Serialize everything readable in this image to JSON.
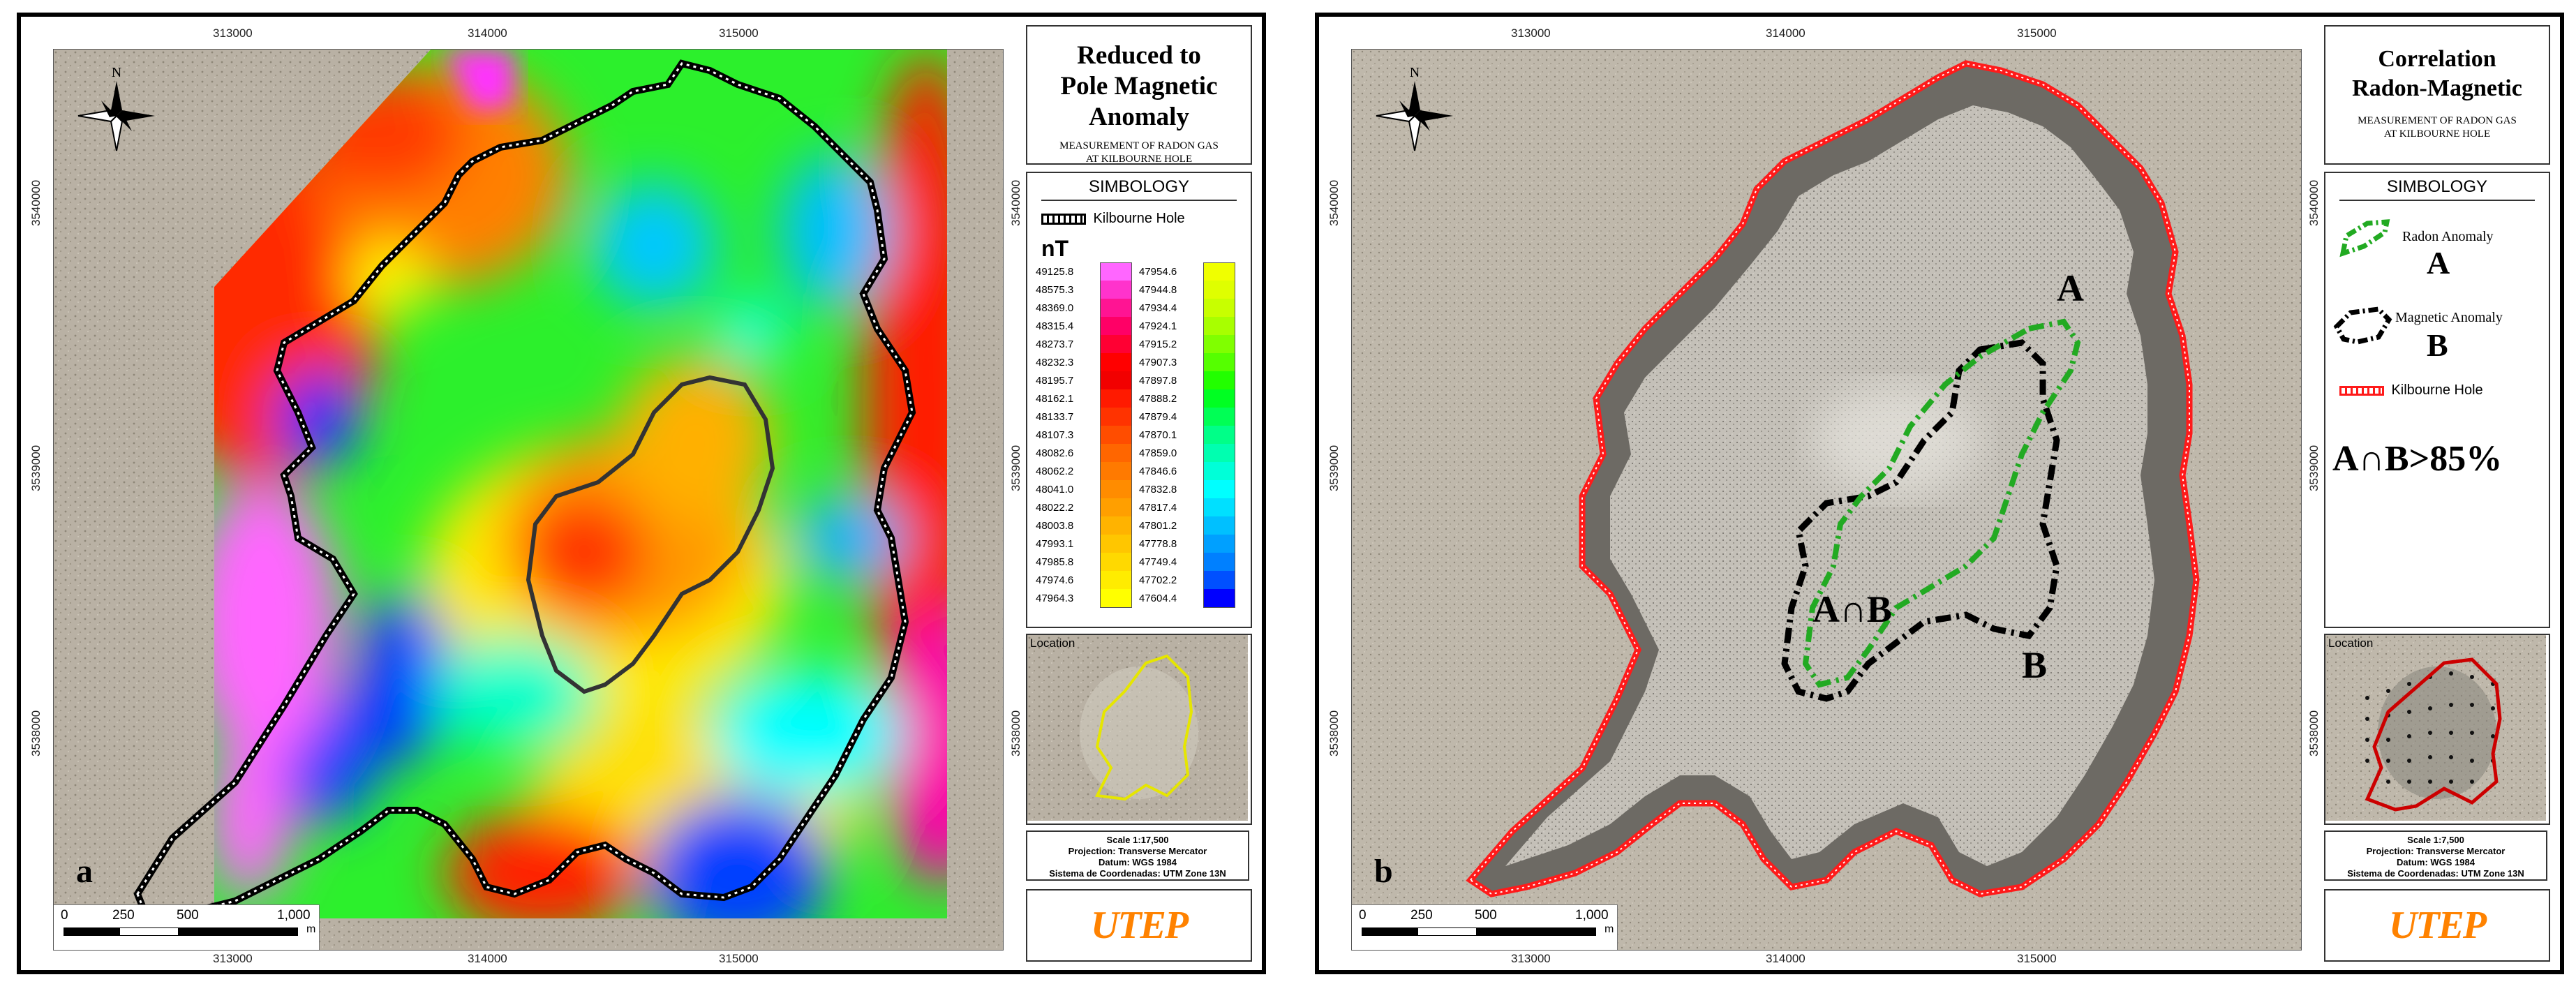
{
  "panel_a": {
    "letter": "a",
    "title_lines": [
      "Reduced to",
      "Pole Magnetic",
      "Anomaly"
    ],
    "subtitle_lines": [
      "MEASUREMENT OF RADON GAS",
      "AT KILBOURNE HOLE"
    ],
    "symbology_label": "SIMBOLOGY",
    "outline_legend": "Kilbourne Hole",
    "unit": "nT",
    "colorbar_left": {
      "values": [
        "49125.8",
        "48575.3",
        "48369.0",
        "48315.4",
        "48273.7",
        "48232.3",
        "48195.7",
        "48162.1",
        "48133.7",
        "48107.3",
        "48082.6",
        "48062.2",
        "48041.0",
        "48022.2",
        "48003.8",
        "47993.1",
        "47985.8",
        "47974.6",
        "47964.3"
      ],
      "colors": [
        "#ff66ff",
        "#ff33cc",
        "#ff1493",
        "#ff0066",
        "#ff0033",
        "#ff0000",
        "#f20000",
        "#ff1a00",
        "#ff3300",
        "#ff4d00",
        "#ff6600",
        "#ff7a00",
        "#ff8c00",
        "#ff9f00",
        "#ffb300",
        "#ffc600",
        "#ffd900",
        "#ffec00",
        "#ffff00"
      ]
    },
    "colorbar_right": {
      "values": [
        "47954.6",
        "47944.8",
        "47934.4",
        "47924.1",
        "47915.2",
        "47907.3",
        "47897.8",
        "47888.2",
        "47879.4",
        "47870.1",
        "47859.0",
        "47846.6",
        "47832.8",
        "47817.4",
        "47801.2",
        "47778.8",
        "47749.4",
        "47702.2",
        "47604.4"
      ],
      "colors": [
        "#f0ff00",
        "#dfff00",
        "#c8ff00",
        "#a8ff00",
        "#80ff00",
        "#55ff00",
        "#22ff00",
        "#00ff22",
        "#00ff55",
        "#00ff88",
        "#00ffb0",
        "#00ffd8",
        "#00ffff",
        "#00e0ff",
        "#00c0ff",
        "#00a0ff",
        "#0080ff",
        "#0050ff",
        "#0000ff"
      ]
    },
    "location_label": "Location",
    "scale_lines": [
      "Scale 1:17,500",
      "Projection: Transverse Mercator",
      "Datum: WGS 1984",
      "Sistema de Coordenadas: UTM Zone 13N"
    ],
    "scalebar_labels": [
      "0",
      "250",
      "500",
      "1,000"
    ],
    "scalebar_unit": "m"
  },
  "panel_b": {
    "letter": "b",
    "title_lines": [
      "Correlation",
      "Radon-Magnetic"
    ],
    "subtitle_lines": [
      "MEASUREMENT OF RADON GAS",
      "AT KILBOURNE HOLE"
    ],
    "symbology_label": "SIMBOLOGY",
    "legend_radon": "Radon Anomaly",
    "legend_radon_letter": "A",
    "legend_magnetic": "Magnetic Anomaly",
    "legend_magnetic_letter": "B",
    "legend_outline": "Kilbourne Hole",
    "correlation_text": "A∩B>85%",
    "map_label_a": "A",
    "map_label_b": "B",
    "map_label_ab": "A∩B",
    "location_label": "Location",
    "scale_lines": [
      "Scale 1:7,500",
      "Projection: Transverse Mercator",
      "Datum: WGS 1984",
      "Sistema de Coordenadas: UTM Zone 13N"
    ],
    "scalebar_labels": [
      "0",
      "250",
      "500",
      "1,000"
    ],
    "scalebar_unit": "m"
  },
  "coordinates": {
    "easting": [
      "313000",
      "314000",
      "315000"
    ],
    "northing": [
      "3540000",
      "3539000",
      "3538000"
    ]
  },
  "north_label": "N",
  "logo_text": "UTEP",
  "colors": {
    "outline_a": "#000000",
    "outline_b": "#ff1a1a",
    "radon_anomaly": "#22aa22",
    "magnetic_anomaly": "#000000",
    "location_outline_a": "#e6e600",
    "location_outline_b": "#cc0000"
  }
}
